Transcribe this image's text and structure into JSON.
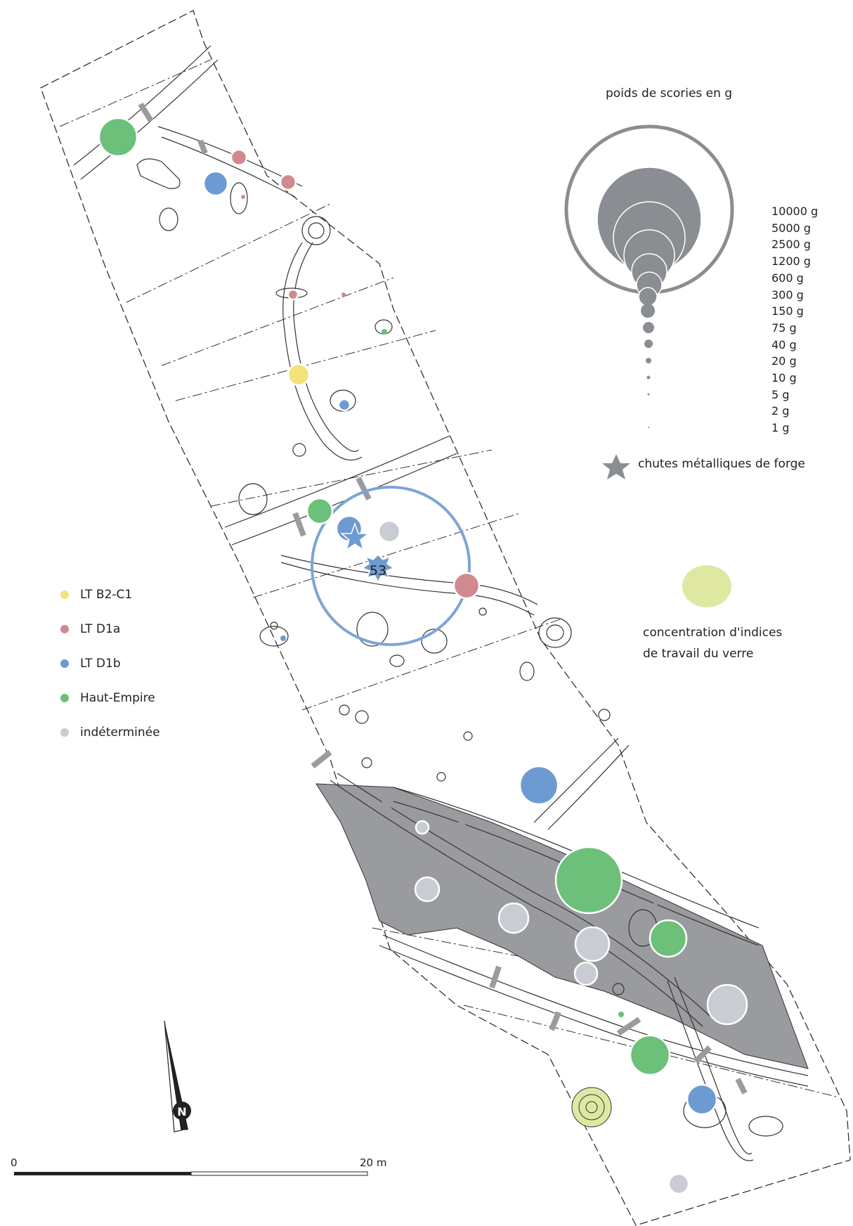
{
  "colors": {
    "lt_b2_c1": "#f2e37a",
    "lt_d1a": "#d08a8e",
    "lt_d1b": "#6d9ad0",
    "haut_empire": "#6cc07a",
    "indeterminee": "#c9ccd3",
    "shaded_zone": "#9a9b9f",
    "scale_circle": "#8a8d92",
    "glass_zone": "#dfe8a3",
    "highlight_ring": "#7fa4d4"
  },
  "legend_periods": {
    "items": [
      {
        "label": "LT B2-C1",
        "color": "#f2e37a"
      },
      {
        "label": "LT D1a",
        "color": "#d08a8e"
      },
      {
        "label": "LT D1b",
        "color": "#6d9ad0"
      },
      {
        "label": "Haut-Empire",
        "color": "#6cc07a"
      },
      {
        "label": "indéterminée",
        "color": "#c9ccd3"
      }
    ]
  },
  "legend_weight": {
    "title": "poids de scories en g",
    "values": [
      "10000 g",
      "5000 g",
      "2500 g",
      "1200 g",
      "600 g",
      "300 g",
      "150 g",
      "75 g",
      "40 g",
      "20 g",
      "10 g",
      "5 g",
      "2 g",
      "1 g"
    ]
  },
  "legend_forge": {
    "label": "chutes métalliques de forge",
    "icon": "star-icon"
  },
  "legend_glass": {
    "line1": "concentration d'indices",
    "line2": "de travail du verre"
  },
  "highlight": {
    "label": "53"
  },
  "scale_bar": {
    "start": "0",
    "end": "20 m"
  },
  "north_arrow": {
    "label": "N",
    "icon": "north-arrow-icon"
  }
}
